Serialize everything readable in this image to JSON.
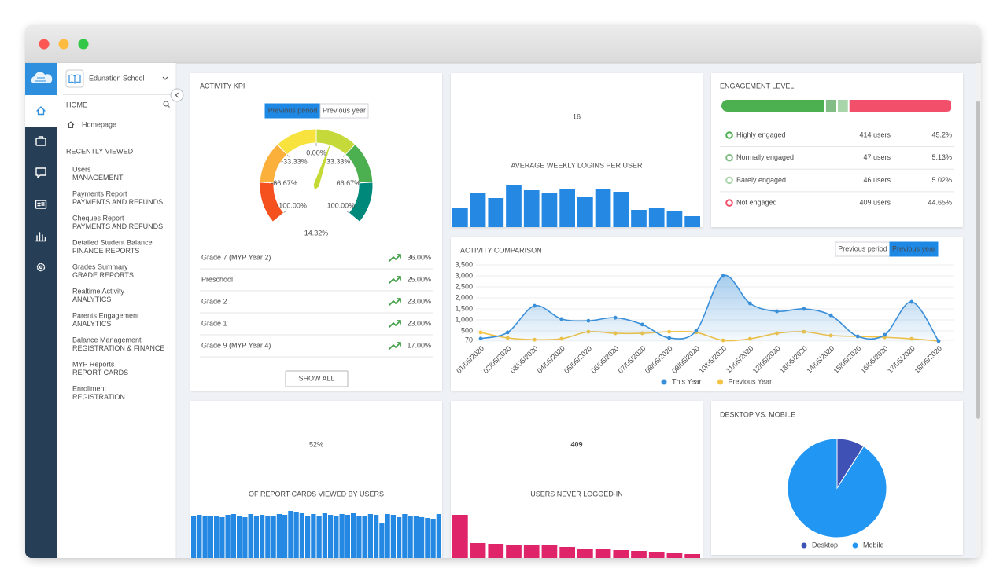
{
  "sidebar": {
    "school": "Edunation School",
    "home_heading": "HOME",
    "home_link": "Homepage",
    "recent_heading": "RECENTLY VIEWED",
    "recent": [
      {
        "title": "Users",
        "subtitle": "MANAGEMENT"
      },
      {
        "title": "Payments Report",
        "subtitle": "PAYMENTS AND REFUNDS"
      },
      {
        "title": "Cheques Report",
        "subtitle": "PAYMENTS AND REFUNDS"
      },
      {
        "title": "Detailed Student Balance",
        "subtitle": "FINANCE REPORTS"
      },
      {
        "title": "Grades Summary",
        "subtitle": "GRADE REPORTS"
      },
      {
        "title": "Realtime Activity",
        "subtitle": "ANALYTICS"
      },
      {
        "title": "Parents Engagement",
        "subtitle": "ANALYTICS"
      },
      {
        "title": "Balance Management",
        "subtitle": "REGISTRATION & FINANCE"
      },
      {
        "title": "MYP Reports",
        "subtitle": "REPORT CARDS"
      },
      {
        "title": "Enrollment",
        "subtitle": "REGISTRATION"
      }
    ]
  },
  "activity_kpi": {
    "title": "ACTIVITY KPI",
    "toggle": [
      "Previous period",
      "Previous year"
    ],
    "gauge": {
      "type": "gauge",
      "ticks": [
        {
          "value": -100,
          "label": "-100.00%"
        },
        {
          "value": -66.67,
          "label": "-66.67%"
        },
        {
          "value": -33.33,
          "label": "-33.33%"
        },
        {
          "value": 0,
          "label": "0.00%"
        },
        {
          "value": 33.33,
          "label": "33.33%"
        },
        {
          "value": 66.67,
          "label": "66.67%"
        },
        {
          "value": 100,
          "label": "100.00%"
        }
      ],
      "band_colors": [
        "#f4511e",
        "#fbb03b",
        "#f7e23e",
        "#c6d93b",
        "#4caf50",
        "#00897b"
      ],
      "value": 14.32,
      "value_label": "14.32%"
    },
    "rows": [
      {
        "name": "Grade 7 (MYP Year 2)",
        "change": "36.00%"
      },
      {
        "name": "Preschool",
        "change": "25.00%"
      },
      {
        "name": "Grade 2",
        "change": "23.00%"
      },
      {
        "name": "Grade 1",
        "change": "23.00%"
      },
      {
        "name": "Grade 9 (MYP Year 4)",
        "change": "17.00%"
      }
    ],
    "button": "SHOW ALL"
  },
  "weekly_logins": {
    "type": "bar",
    "value": 16,
    "label": "AVERAGE WEEKLY LOGINS PER USER",
    "color": "#2589e4",
    "bars": [
      24,
      44,
      37,
      53,
      47,
      44,
      48,
      38,
      49,
      45,
      22,
      25,
      21,
      14
    ]
  },
  "engagement": {
    "title": "ENGAGEMENT LEVEL",
    "levels": [
      {
        "name": "Highly engaged",
        "users": "414 users",
        "share": 45.2,
        "share_label": "45.2%",
        "color": "#4caf50"
      },
      {
        "name": "Normally engaged",
        "users": "47 users",
        "share": 5.13,
        "share_label": "5.13%",
        "color": "#81bd84"
      },
      {
        "name": "Barely engaged",
        "users": "46 users",
        "share": 5.02,
        "share_label": "5.02%",
        "color": "#a9d5aa"
      },
      {
        "name": "Not engaged",
        "users": "409 users",
        "share": 44.65,
        "share_label": "44.65%",
        "color": "#f2506a"
      }
    ]
  },
  "activity_comparison": {
    "title": "ACTIVITY COMPARISON",
    "toggle": [
      "Previous period",
      "Previous year"
    ],
    "type": "line",
    "categories": [
      "01/05/2020",
      "02/05/2020",
      "03/05/2020",
      "04/05/2020",
      "05/05/2020",
      "06/05/2020",
      "07/05/2020",
      "08/05/2020",
      "09/05/2020",
      "10/05/2020",
      "11/05/2020",
      "12/05/2020",
      "13/05/2020",
      "14/05/2020",
      "15/05/2020",
      "16/05/2020",
      "17/05/2020",
      "18/05/2020"
    ],
    "series": [
      {
        "name": "This Year",
        "color": "#3a8fd9",
        "values": [
          150,
          430,
          1640,
          1040,
          960,
          1100,
          790,
          180,
          500,
          3000,
          1750,
          1390,
          1500,
          1210,
          250,
          320,
          1820,
          40
        ]
      },
      {
        "name": "Previous Year",
        "color": "#f5c342",
        "values": [
          430,
          180,
          100,
          140,
          460,
          390,
          390,
          460,
          430,
          70,
          140,
          390,
          460,
          290,
          250,
          210,
          140,
          40
        ]
      }
    ],
    "ylim": [
      0,
      3500
    ],
    "yticks": [
      70,
      500,
      {
        "value": 1000,
        "label": "1,000"
      },
      {
        "value": 1500,
        "label": "1,500"
      },
      {
        "value": 2000,
        "label": "2,000"
      },
      {
        "value": 2500,
        "label": "2,500"
      },
      {
        "value": 3000,
        "label": "3,000"
      },
      {
        "value": 3500,
        "label": "3,500"
      }
    ],
    "grid": true,
    "legend": "bottom"
  },
  "report_cards": {
    "type": "bar",
    "value": "52%",
    "label": "OF REPORT CARDS VIEWED BY USERS",
    "color": "#2589e4",
    "bars": [
      54,
      55,
      53,
      54,
      53,
      52,
      55,
      56,
      53,
      52,
      56,
      54,
      55,
      53,
      54,
      56,
      55,
      60,
      58,
      57,
      54,
      56,
      53,
      57,
      55,
      54,
      56,
      55,
      57,
      53,
      54,
      56,
      55,
      44,
      56,
      55,
      52,
      56,
      53,
      54,
      52,
      51,
      50,
      56
    ]
  },
  "never_logged_in": {
    "type": "bar",
    "value": 409,
    "label": "USERS NEVER LOGGED-IN",
    "color": "#e0246a",
    "bars": [
      55,
      19,
      18,
      17,
      17,
      16,
      14,
      12,
      11,
      10,
      9,
      8,
      6,
      5
    ]
  },
  "devices": {
    "type": "pie",
    "title": "DESKTOP VS. MOBILE",
    "slices": [
      {
        "name": "Desktop",
        "value": 9,
        "color": "#3f51b5"
      },
      {
        "name": "Mobile",
        "value": 91,
        "color": "#2196f3"
      }
    ]
  }
}
